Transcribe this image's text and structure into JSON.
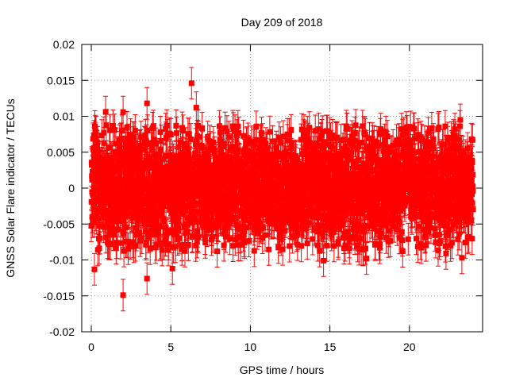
{
  "chart_data": {
    "type": "scatter",
    "title": "Day 209 of 2018",
    "xlabel": "GPS time / hours",
    "ylabel": "GNSS Solar Flare indicator / TECUs",
    "xlim": [
      -0.6,
      24.6
    ],
    "ylim": [
      -0.02,
      0.02
    ],
    "xticks": [
      0,
      5,
      10,
      15,
      20
    ],
    "xtick_labels": [
      "0",
      "5",
      "10",
      "15",
      "20"
    ],
    "yticks": [
      -0.02,
      -0.015,
      -0.01,
      -0.005,
      0,
      0.005,
      0.01,
      0.015,
      0.02
    ],
    "ytick_labels": [
      "-0.02",
      "-0.015",
      "-0.01",
      "-0.005",
      "0",
      "0.005",
      "0.01",
      "0.015",
      "0.02"
    ],
    "grid": true,
    "series": [
      {
        "name": "GNSS Solar Flare indicator",
        "color": "#ff0000",
        "marker": "square",
        "error_bars": true,
        "error_bar_half_width": 0.0022,
        "x_range": [
          0,
          24
        ],
        "approx_noise_std": 0.004,
        "approx_count": 2880,
        "notable_points": [
          {
            "x": 0.2,
            "y": -0.0113
          },
          {
            "x": 2.0,
            "y": -0.0149
          },
          {
            "x": 2.0,
            "y": 0.0106
          },
          {
            "x": 3.5,
            "y": 0.0118
          },
          {
            "x": 3.5,
            "y": -0.0126
          },
          {
            "x": 0.9,
            "y": 0.0106
          },
          {
            "x": 6.3,
            "y": 0.0146
          },
          {
            "x": 6.6,
            "y": 0.0112
          },
          {
            "x": 5.1,
            "y": -0.0112
          },
          {
            "x": 14.6,
            "y": -0.0101
          },
          {
            "x": 17.3,
            "y": -0.0098
          },
          {
            "x": 23.3,
            "y": -0.0097
          },
          {
            "x": 23.2,
            "y": 0.0095
          },
          {
            "x": 22.3,
            "y": -0.0091
          },
          {
            "x": 21.8,
            "y": 0.0082
          }
        ]
      }
    ]
  }
}
